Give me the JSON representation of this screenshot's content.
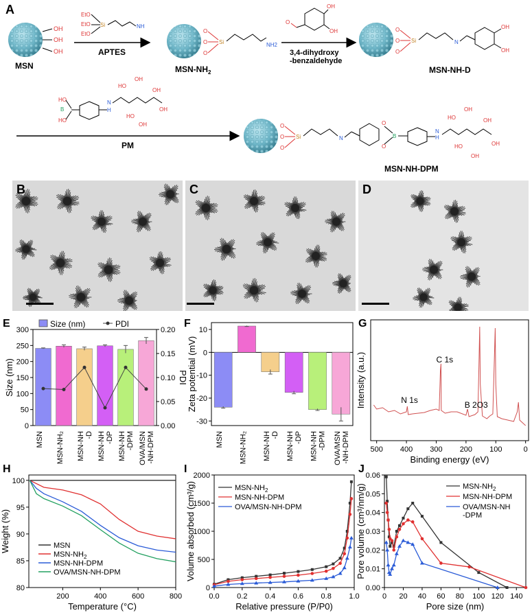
{
  "panel_letters": {
    "A": "A",
    "B": "B",
    "C": "C",
    "D": "D",
    "E": "E",
    "F": "F",
    "G": "G",
    "H": "H",
    "I": "I",
    "J": "J"
  },
  "scheme": {
    "msn": "MSN",
    "msn_nh2": "MSN-NH",
    "msn_nh2_sub": "2",
    "msn_nh_d": "MSN-NH-D",
    "msn_nh_dpm": "MSN-NH-DPM",
    "aptes": "APTES",
    "reagent2_line1": "3,4-dihydroxy",
    "reagent2_line2": "-benzaldehyde",
    "pm": "PM",
    "oh": "OH",
    "ho": "HO",
    "o": "O",
    "si": "Si",
    "nh2": "NH",
    "nh2_sub": "2",
    "n": "N",
    "b": "B",
    "h": "H",
    "eto": "EtO"
  },
  "panelE": {
    "legend_size": "Size (nm)",
    "legend_pdi": "PDI",
    "ylabel": "Size (nm)",
    "y2label": "PDI",
    "categories": [
      "MSN",
      "MSN-NH2",
      "MSN-NH-D",
      "MSN-NH-DP",
      "MSN-NH-DPM",
      "OVA/MSN-NH-DPM"
    ],
    "cat_lines": [
      [
        "MSN"
      ],
      [
        "MSN-NH₂"
      ],
      [
        "MSN-NH",
        "-D"
      ],
      [
        "MSN-NH",
        "-DP"
      ],
      [
        "MSN-NH",
        "-DPM"
      ],
      [
        "OVA/MSN",
        "-NH-DPM"
      ]
    ],
    "size": [
      241,
      248,
      240,
      249,
      238,
      265
    ],
    "size_err": [
      1.5,
      4,
      5,
      3,
      12,
      10
    ],
    "pdi": [
      0.077,
      0.075,
      0.121,
      0.037,
      0.121,
      0.076
    ],
    "ylim": [
      0,
      300
    ],
    "y2lim": [
      0,
      0.2
    ],
    "yticks": [
      0,
      50,
      100,
      150,
      200,
      250,
      300
    ],
    "y2ticks": [
      "0.00",
      "0.05",
      "0.10",
      "0.15",
      "0.20"
    ],
    "colors": [
      "#8c8cf5",
      "#f06ad0",
      "#f5cf8c",
      "#d35ff5",
      "#b8f07a",
      "#f7a7d7"
    ]
  },
  "panelF": {
    "ylabel": "Zeta potential (mV)",
    "cat_lines": [
      [
        "MSN"
      ],
      [
        "MSN-NH₂"
      ],
      [
        "MSN-NH",
        "-D"
      ],
      [
        "MSN-NH",
        "-DP"
      ],
      [
        "MSN-NH",
        "-DPM"
      ],
      [
        "OVA/MSN",
        "-NH-DPM"
      ]
    ],
    "values": [
      -24,
      11.5,
      -8.5,
      -17.5,
      -25,
      -27
    ],
    "err": [
      0.4,
      0.2,
      1,
      0.6,
      0.4,
      3
    ],
    "ylim": [
      -32,
      13
    ],
    "yticks": [
      10,
      0,
      -10,
      -20,
      -30
    ],
    "colors": [
      "#8c8cf5",
      "#f06ad0",
      "#f5cf8c",
      "#d35ff5",
      "#b8f07a",
      "#f7a7d7"
    ]
  },
  "panelG": {
    "ylabel": "Intensity (a.u.)",
    "xlabel": "Binding energy (eV)",
    "xticks": [
      500,
      400,
      300,
      200,
      100,
      0
    ],
    "ann_n": "N 1s",
    "ann_c": "C 1s",
    "ann_b": "B 2O3"
  },
  "chart_data": [
    {
      "type": "line",
      "panel": "H",
      "xlabel": "Temperature (°C)",
      "ylabel": "Weight (%)",
      "xlim": [
        20,
        800
      ],
      "ylim": [
        80,
        101
      ],
      "xticks": [
        200,
        400,
        600,
        800
      ],
      "yticks": [
        80,
        85,
        90,
        95,
        100
      ],
      "series": [
        {
          "name": "MSN",
          "color": "#333333",
          "x": [
            25,
            100,
            200,
            400,
            600,
            800
          ],
          "y": [
            100,
            100,
            100,
            100,
            100,
            100
          ]
        },
        {
          "name": "MSN-NH2",
          "color": "#e03030",
          "x": [
            25,
            100,
            200,
            300,
            400,
            500,
            600,
            700,
            800
          ],
          "y": [
            100,
            98.7,
            98.2,
            97.3,
            95.6,
            92.7,
            90.5,
            89.6,
            89.1
          ]
        },
        {
          "name": "MSN-NH-DPM",
          "color": "#2a5bd7",
          "x": [
            25,
            60,
            100,
            200,
            300,
            400,
            500,
            600,
            700,
            800
          ],
          "y": [
            100,
            98.5,
            97.5,
            96.0,
            94.2,
            91.6,
            89.3,
            87.8,
            87.0,
            86.6
          ]
        },
        {
          "name": "OVA/MSN-NH-DPM",
          "color": "#22a060",
          "x": [
            25,
            60,
            100,
            200,
            300,
            400,
            500,
            600,
            700,
            800
          ],
          "y": [
            100,
            97.5,
            96.6,
            95.2,
            93.4,
            90.8,
            88.3,
            86.4,
            85.4,
            84.8
          ]
        }
      ]
    },
    {
      "type": "line",
      "panel": "I",
      "xlabel": "Relative pressure (P/P0)",
      "ylabel": "Volume absorbed (cm³/g)",
      "xlim": [
        0,
        1
      ],
      "ylim": [
        0,
        2000
      ],
      "xticks": [
        0.0,
        0.2,
        0.4,
        0.6,
        0.8,
        1.0
      ],
      "yticks": [
        0,
        500,
        1000,
        1500,
        2000
      ],
      "series": [
        {
          "name": "MSN-NH2",
          "color": "#333333",
          "x": [
            0,
            0.1,
            0.2,
            0.3,
            0.4,
            0.5,
            0.6,
            0.7,
            0.8,
            0.85,
            0.9,
            0.93,
            0.95,
            0.97,
            0.98
          ],
          "y": [
            60,
            140,
            175,
            200,
            225,
            255,
            285,
            320,
            370,
            420,
            520,
            700,
            1000,
            1500,
            1880
          ]
        },
        {
          "name": "MSN-NH-DPM",
          "color": "#e03030",
          "x": [
            0,
            0.1,
            0.2,
            0.3,
            0.4,
            0.5,
            0.6,
            0.7,
            0.8,
            0.85,
            0.9,
            0.93,
            0.95,
            0.97,
            0.98
          ],
          "y": [
            50,
            110,
            140,
            160,
            180,
            200,
            220,
            250,
            290,
            340,
            430,
            600,
            880,
            1300,
            1580
          ]
        },
        {
          "name": "OVA/MSN-NH-DPM",
          "color": "#2a5bd7",
          "x": [
            0,
            0.1,
            0.2,
            0.3,
            0.4,
            0.5,
            0.6,
            0.7,
            0.8,
            0.85,
            0.9,
            0.93,
            0.95,
            0.97,
            0.98
          ],
          "y": [
            25,
            55,
            70,
            80,
            90,
            100,
            115,
            130,
            160,
            190,
            250,
            350,
            520,
            720,
            880
          ]
        }
      ]
    },
    {
      "type": "line",
      "panel": "J",
      "xlabel": "Pore size (nm)",
      "ylabel": "Pore volume (cm³/nm/g)",
      "xlim": [
        0,
        150
      ],
      "ylim": [
        0,
        0.06
      ],
      "xticks": [
        0,
        20,
        40,
        60,
        80,
        100,
        120,
        140
      ],
      "yticks": [
        0.0,
        0.01,
        0.02,
        0.03,
        0.04,
        0.05,
        0.06
      ],
      "series": [
        {
          "name": "MSN-NH2",
          "color": "#333333",
          "x": [
            2,
            3,
            4,
            5,
            6,
            8,
            10,
            13,
            16,
            20,
            25,
            30,
            40,
            60,
            100,
            130
          ],
          "y": [
            0.059,
            0.046,
            0.036,
            0.027,
            0.022,
            0.024,
            0.022,
            0.03,
            0.033,
            0.037,
            0.042,
            0.045,
            0.038,
            0.024,
            0.008,
            0.0
          ]
        },
        {
          "name": "MSN-NH-DPM",
          "color": "#e03030",
          "x": [
            2,
            3,
            4,
            5,
            6,
            8,
            10,
            13,
            16,
            20,
            25,
            30,
            40,
            60,
            90,
            150
          ],
          "y": [
            0.045,
            0.04,
            0.036,
            0.031,
            0.026,
            0.025,
            0.02,
            0.027,
            0.031,
            0.034,
            0.036,
            0.035,
            0.026,
            0.013,
            0.011,
            0.0
          ]
        },
        {
          "name": "OVA/MSN-NH-DPM",
          "color": "#2a5bd7",
          "x": [
            2,
            3,
            4,
            5,
            6,
            8,
            10,
            13,
            16,
            20,
            25,
            30,
            40,
            120
          ],
          "y": [
            0.024,
            0.02,
            0.012,
            0.008,
            0.007,
            0.01,
            0.012,
            0.018,
            0.022,
            0.025,
            0.024,
            0.023,
            0.013,
            0.0
          ]
        }
      ]
    }
  ],
  "legendH": [
    "MSN",
    "MSN-NH",
    "MSN-NH-DPM",
    "OVA/MSN-NH-DPM"
  ],
  "legendI": [
    "MSN-NH",
    "MSN-NH-DPM",
    "OVA/MSN-NH-DPM"
  ],
  "legendJ": [
    "MSN-NH",
    "MSN-NH-DPM",
    "OVA/MSN-NH",
    "-DPM"
  ],
  "sub2": "2"
}
